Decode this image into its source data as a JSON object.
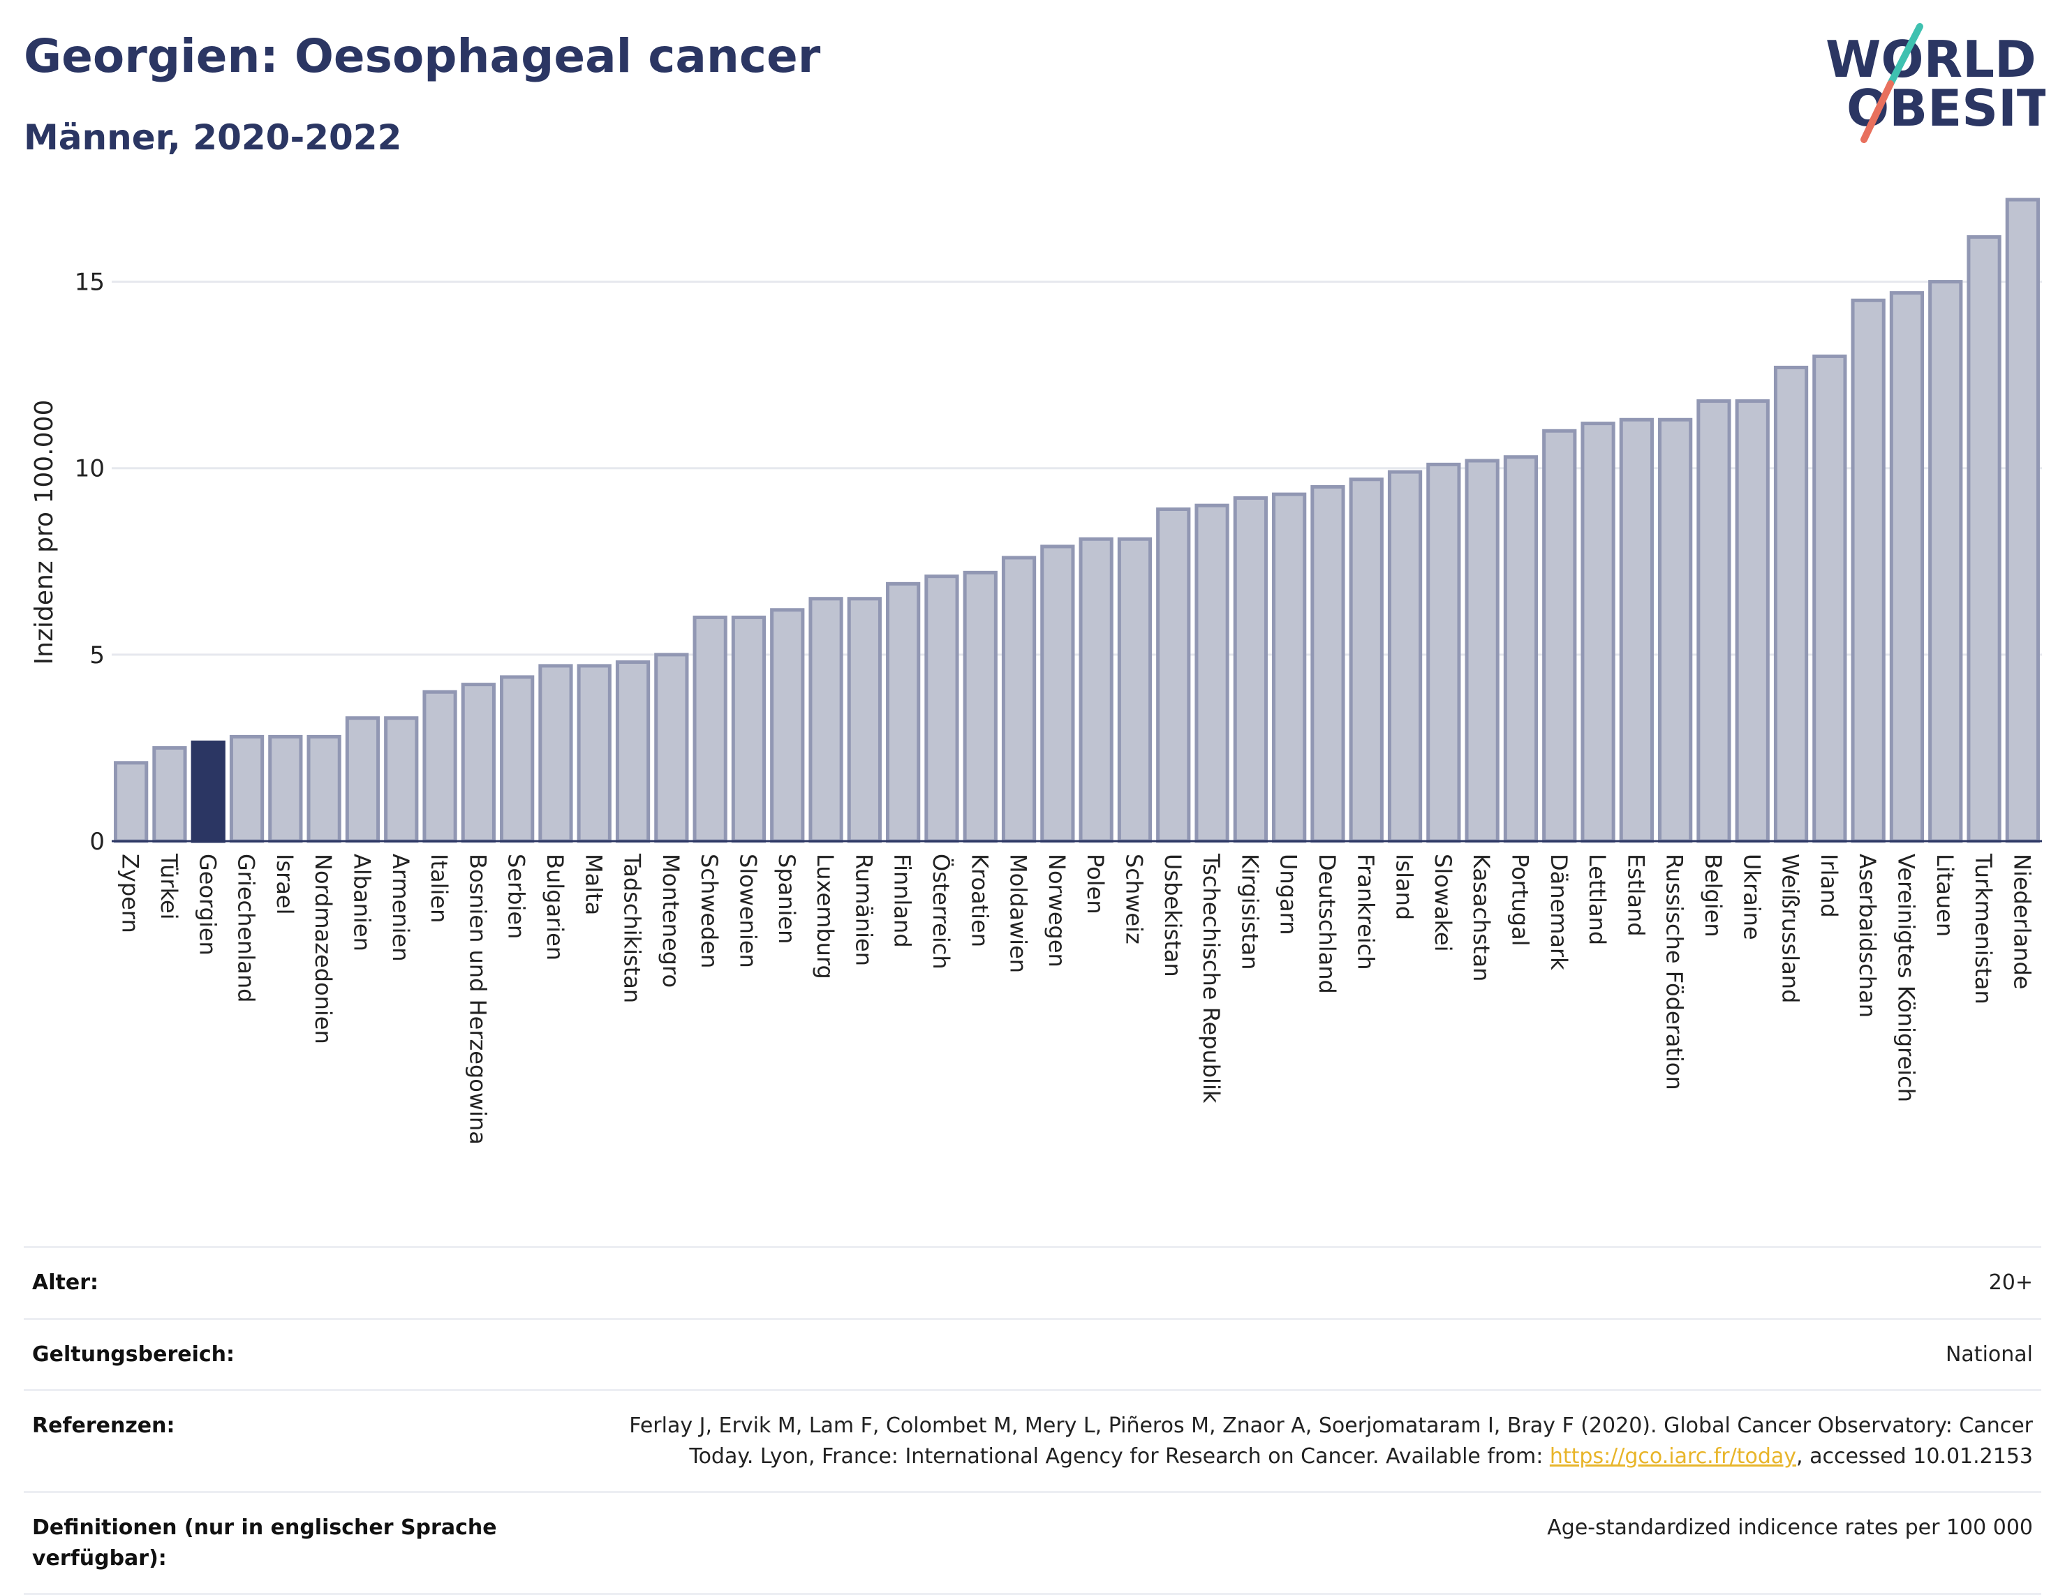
{
  "header": {
    "title": "Georgien: Oesophageal cancer",
    "subtitle": "Männer, 2020-2022",
    "logo_line1": "WORLD",
    "logo_line2": "OBESITY"
  },
  "chart_data": {
    "type": "bar",
    "ylabel": "Inzidenz pro 100.000",
    "ylim": [
      0,
      17.5
    ],
    "yticks": [
      0,
      5,
      10,
      15
    ],
    "grid": true,
    "highlight": "Georgien",
    "colors": {
      "bar": "#bfc3d1",
      "bar_edge": "#9197b3",
      "highlight": "#2b3663",
      "highlight_edge": "#2b3663"
    },
    "categories": [
      "Zypern",
      "Türkei",
      "Georgien",
      "Griechenland",
      "Israel",
      "Nordmazedonien",
      "Albanien",
      "Armenien",
      "Italien",
      "Bosnien und Herzegowina",
      "Serbien",
      "Bulgarien",
      "Malta",
      "Tadschikistan",
      "Montenegro",
      "Schweden",
      "Slowenien",
      "Spanien",
      "Luxemburg",
      "Rumänien",
      "Finnland",
      "Österreich",
      "Kroatien",
      "Moldawien",
      "Norwegen",
      "Polen",
      "Schweiz",
      "Usbekistan",
      "Tschechische Republik",
      "Kirgisistan",
      "Ungarn",
      "Deutschland",
      "Frankreich",
      "Island",
      "Slowakei",
      "Kasachstan",
      "Portugal",
      "Dänemark",
      "Lettland",
      "Estland",
      "Russische Föderation",
      "Belgien",
      "Ukraine",
      "Weißrussland",
      "Irland",
      "Aserbaidschan",
      "Vereinigtes Königreich",
      "Litauen",
      "Turkmenistan",
      "Niederlande"
    ],
    "values": [
      2.1,
      2.5,
      2.65,
      2.8,
      2.8,
      2.8,
      3.3,
      3.3,
      4.0,
      4.2,
      4.4,
      4.7,
      4.7,
      4.8,
      5.0,
      6.0,
      6.0,
      6.2,
      6.5,
      6.5,
      6.9,
      7.1,
      7.2,
      7.6,
      7.9,
      8.1,
      8.1,
      8.9,
      9.0,
      9.2,
      9.3,
      9.5,
      9.7,
      9.9,
      10.1,
      10.2,
      10.3,
      11.0,
      11.2,
      11.3,
      11.3,
      11.8,
      11.8,
      12.7,
      13.0,
      14.5,
      14.7,
      15.0,
      16.2,
      17.2
    ]
  },
  "meta": {
    "age_label": "Alter:",
    "age_value": "20+",
    "scope_label": "Geltungsbereich:",
    "scope_value": "National",
    "ref_label": "Referenzen:",
    "ref_text_1": "Ferlay J, Ervik M, Lam F, Colombet M, Mery L, Piñeros M, Znaor A, Soerjomataram I, Bray F (2020). Global Cancer Observatory: Cancer Today. Lyon, France: International Agency for Research on Cancer. Available from: ",
    "ref_link": "https://gco.iarc.fr/today",
    "ref_text_2": ", accessed 10.01.2153",
    "def_label": "Definitionen (nur in englischer Sprache verfügbar):",
    "def_value": "Age-standardized indicence rates per 100 000"
  }
}
